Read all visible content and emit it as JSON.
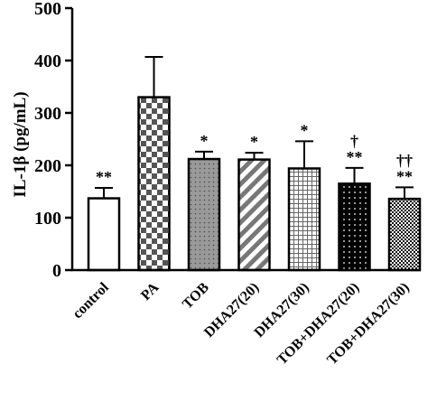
{
  "chart_data": {
    "type": "bar",
    "title": "",
    "xlabel": "",
    "ylabel": "IL-1β (pg/mL)",
    "ylim": [
      0,
      500
    ],
    "yticks": [
      0,
      100,
      200,
      300,
      400,
      500
    ],
    "grid": false,
    "categories": [
      "control",
      "PA",
      "TOB",
      "DHA27(20)",
      "DHA27(30)",
      "TOB+DHA27(20)",
      "TOB+DHA27(30)"
    ],
    "values": [
      137,
      330,
      212,
      211,
      194,
      165,
      136
    ],
    "errors": [
      20,
      77,
      14,
      13,
      52,
      30,
      22
    ],
    "significance": [
      "**",
      "",
      "*",
      "*",
      "*",
      "†\n**",
      "††\n**"
    ],
    "fill_patterns": [
      "white",
      "checkerboard",
      "dotted-gray",
      "diagonal-stripes",
      "grid",
      "black-dots",
      "fine-checker"
    ]
  }
}
